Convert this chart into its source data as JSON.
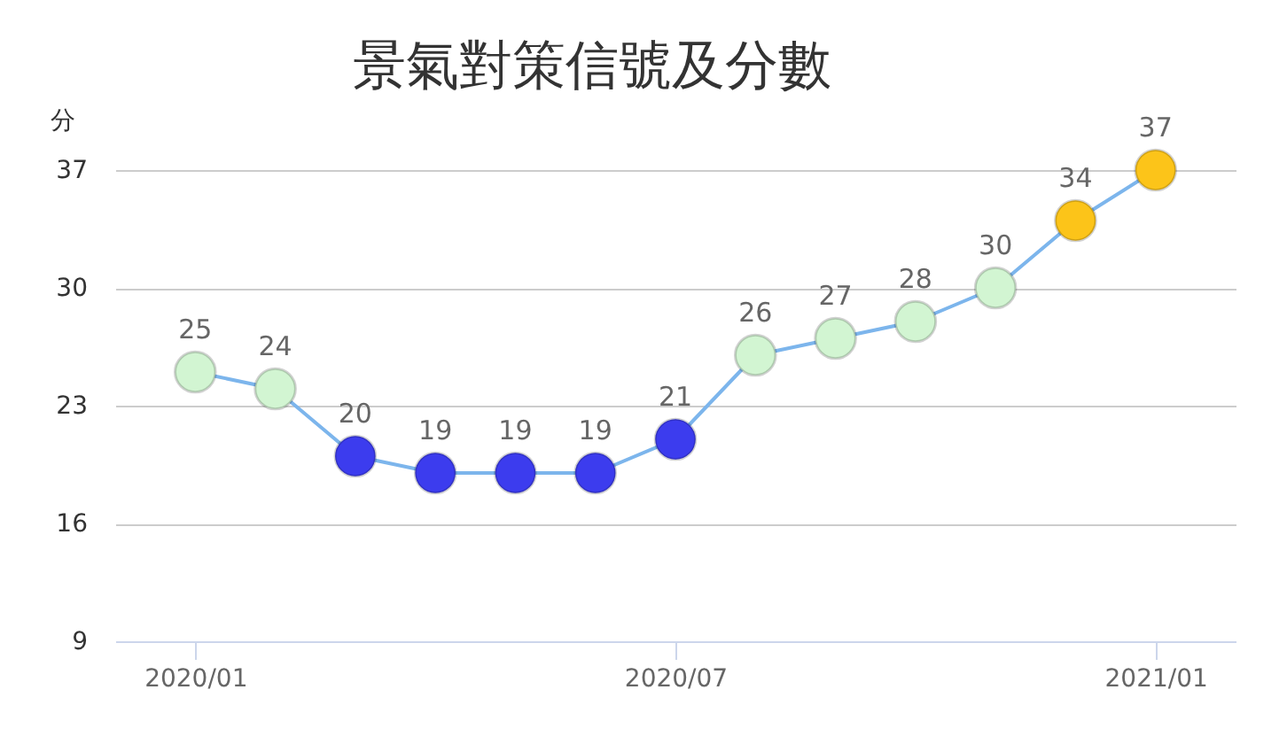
{
  "chart_data": {
    "type": "line",
    "title": "景氣對策信號及分數",
    "ylabel": "分",
    "categories": [
      "2020/01",
      null,
      null,
      null,
      null,
      null,
      "2020/07",
      null,
      null,
      null,
      null,
      null,
      "2021/01"
    ],
    "values": [
      25,
      24,
      20,
      19,
      19,
      19,
      21,
      26,
      27,
      28,
      30,
      34,
      37
    ],
    "color": "#7cb5ec",
    "colors": [
      "#d2f5d2",
      "#d2f5d2",
      "#3c3cee",
      "#3c3cee",
      "#3c3cee",
      "#3c3cee",
      "#3c3cee",
      "#d2f5d2",
      "#d2f5d2",
      "#d2f5d2",
      "#d2f5d2",
      "#fcc419",
      "#fcc419"
    ],
    "marker": "circle",
    "ylim": [
      9,
      37
    ],
    "yticks": [
      9,
      16,
      23,
      30,
      37
    ],
    "grid": "y",
    "data_labels": true
  }
}
